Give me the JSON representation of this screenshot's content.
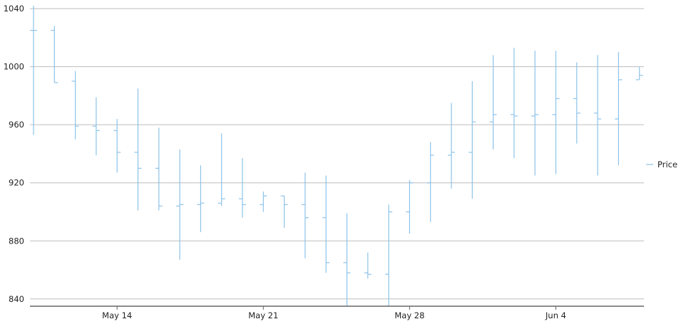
{
  "chart_data": {
    "type": "ohlc",
    "title": "",
    "xlabel": "",
    "ylabel": "",
    "ylim": [
      835,
      1042
    ],
    "y_ticks": [
      "840",
      "880",
      "920",
      "960",
      "1000",
      "1040"
    ],
    "x_ticks": [
      {
        "label": "May 14",
        "date": "May 14"
      },
      {
        "label": "May 21",
        "date": "May 21"
      },
      {
        "label": "May 28",
        "date": "May 28"
      },
      {
        "label": "Jun 4",
        "date": "Jun 4"
      }
    ],
    "grid": true,
    "legend": {
      "placement": "right",
      "entries": [
        "Price"
      ]
    },
    "series": [
      {
        "name": "Price",
        "color": "#8cc3ea",
        "dates": [
          "May 10",
          "May 11",
          "May 12",
          "May 13",
          "May 14",
          "May 15",
          "May 16",
          "May 17",
          "May 18",
          "May 19",
          "May 20",
          "May 21",
          "May 22",
          "May 23",
          "May 24",
          "May 25",
          "May 26",
          "May 27",
          "May 28",
          "May 29",
          "May 30",
          "May 31",
          "Jun 1",
          "Jun 2",
          "Jun 3",
          "Jun 4",
          "Jun 5",
          "Jun 6",
          "Jun 7",
          "Jun 8"
        ],
        "open": [
          1025,
          1025,
          990,
          959,
          956,
          941,
          930,
          904,
          905,
          906,
          909,
          905,
          911,
          905,
          896,
          865,
          858,
          857,
          900,
          920,
          939,
          941,
          962,
          967,
          966,
          967,
          978,
          968,
          964,
          991
        ],
        "high": [
          1042,
          1028,
          997,
          979,
          964,
          985,
          958,
          943,
          932,
          954,
          937,
          914,
          911,
          927,
          925,
          899,
          872,
          905,
          922,
          948,
          975,
          990,
          1008,
          1013,
          1011,
          1011,
          1003,
          1008,
          1010,
          1000
        ],
        "low": [
          953,
          989,
          950,
          939,
          927,
          901,
          901,
          867,
          886,
          904,
          896,
          900,
          889,
          868,
          858,
          835,
          854,
          835,
          885,
          893,
          916,
          909,
          943,
          937,
          925,
          926,
          947,
          925,
          932,
          991
        ],
        "close": [
          1025,
          989,
          959,
          956,
          941,
          930,
          904,
          905,
          906,
          909,
          905,
          911,
          905,
          896,
          865,
          858,
          857,
          900,
          920,
          939,
          941,
          962,
          967,
          966,
          967,
          978,
          968,
          964,
          991,
          994
        ]
      }
    ]
  }
}
